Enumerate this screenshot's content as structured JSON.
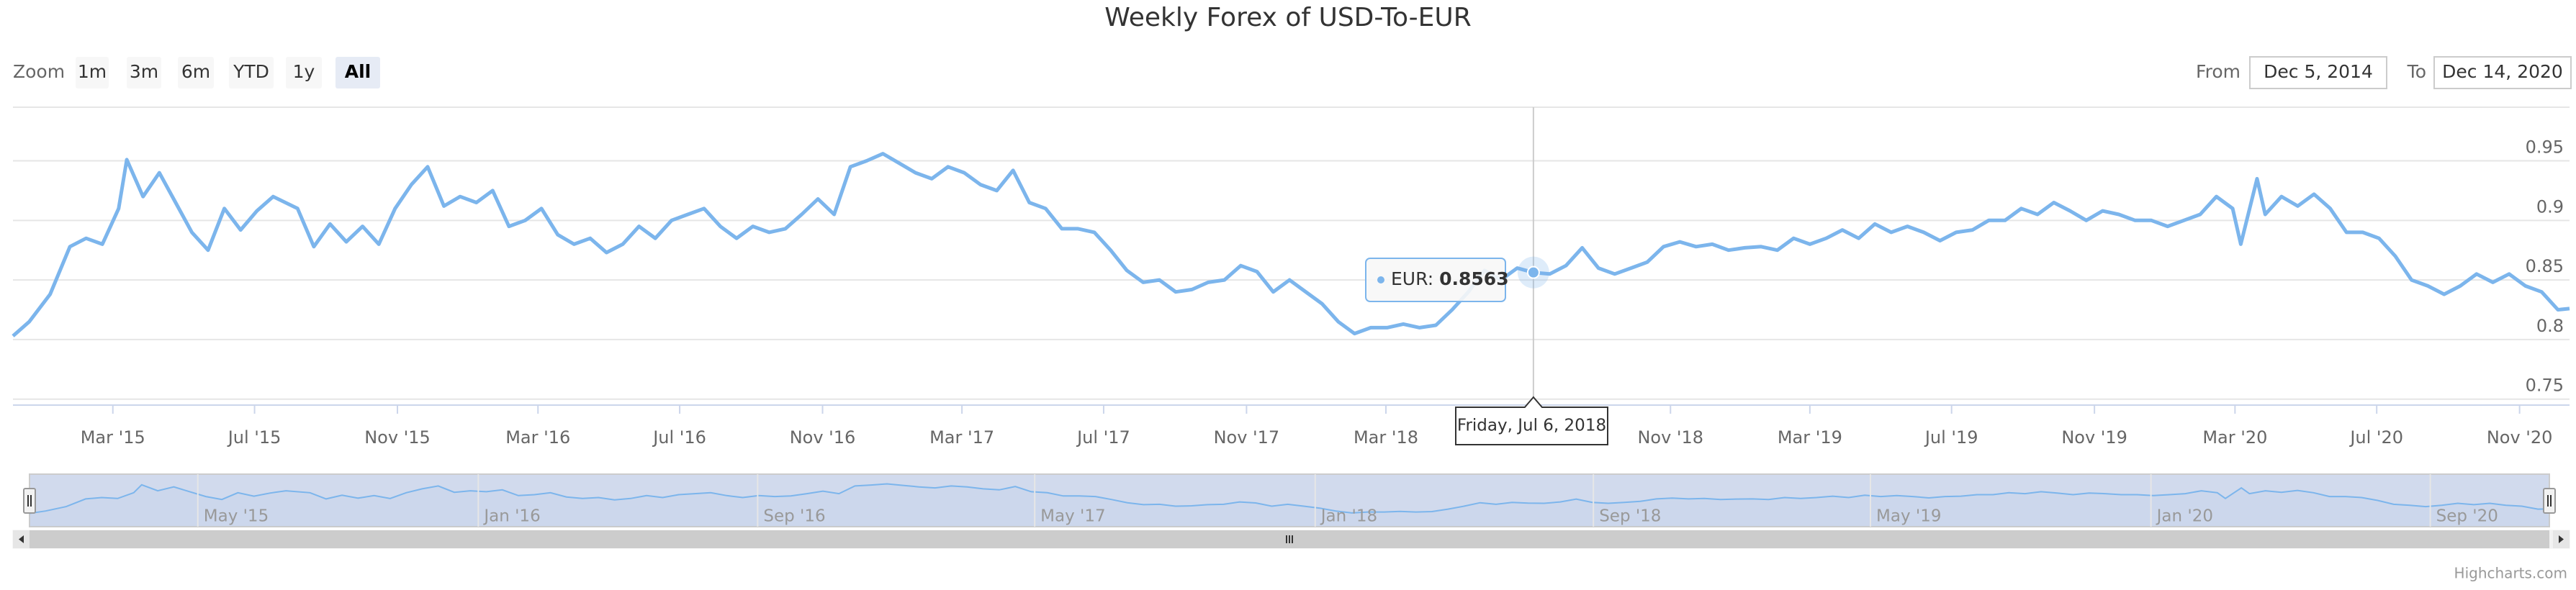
{
  "chart_data": {
    "type": "line",
    "title": "Weekly Forex of USD-To-EUR",
    "range_selector": {
      "label": "Zoom",
      "buttons": [
        "1m",
        "3m",
        "6m",
        "YTD",
        "1y",
        "All"
      ],
      "selected": 5,
      "from_label": "From",
      "from": "Dec 5, 2014",
      "to_label": "To",
      "to": "Dec 14, 2020"
    },
    "color": "#7cb5ec",
    "grid": true,
    "xlim": [
      "2014-12-05",
      "2020-12-14"
    ],
    "ylim": [
      0.745,
      0.995
    ],
    "yticks": [
      0.75,
      0.8,
      0.85,
      0.9,
      0.95
    ],
    "xticks": [
      {
        "value": "2015-03-01",
        "label": "Mar '15"
      },
      {
        "value": "2015-07-01",
        "label": "Jul '15"
      },
      {
        "value": "2015-11-01",
        "label": "Nov '15"
      },
      {
        "value": "2016-03-01",
        "label": "Mar '16"
      },
      {
        "value": "2016-07-01",
        "label": "Jul '16"
      },
      {
        "value": "2016-11-01",
        "label": "Nov '16"
      },
      {
        "value": "2017-03-01",
        "label": "Mar '17"
      },
      {
        "value": "2017-07-01",
        "label": "Jul '17"
      },
      {
        "value": "2017-11-01",
        "label": "Nov '17"
      },
      {
        "value": "2018-03-01",
        "label": "Mar '18"
      },
      {
        "value": "2018-11-01",
        "label": "Nov '18"
      },
      {
        "value": "2019-03-01",
        "label": "Mar '19"
      },
      {
        "value": "2019-07-01",
        "label": "Jul '19"
      },
      {
        "value": "2019-11-01",
        "label": "Nov '19"
      },
      {
        "value": "2020-03-01",
        "label": "Mar '20"
      },
      {
        "value": "2020-07-01",
        "label": "Jul '20"
      },
      {
        "value": "2020-11-01",
        "label": "Nov '20"
      }
    ],
    "navigator_xticks": [
      {
        "value": "2015-05-01",
        "label": "May '15"
      },
      {
        "value": "2016-01-01",
        "label": "Jan '16"
      },
      {
        "value": "2016-09-01",
        "label": "Sep '16"
      },
      {
        "value": "2017-05-01",
        "label": "May '17"
      },
      {
        "value": "2018-01-01",
        "label": "Jan '18"
      },
      {
        "value": "2018-09-01",
        "label": "Sep '18"
      },
      {
        "value": "2019-05-01",
        "label": "May '19"
      },
      {
        "value": "2020-01-01",
        "label": "Jan '20"
      },
      {
        "value": "2020-09-01",
        "label": "Sep '20"
      }
    ],
    "x": [
      "2014-12-05",
      "2014-12-19",
      "2015-01-06",
      "2015-01-23",
      "2015-02-06",
      "2015-02-20",
      "2015-03-06",
      "2015-03-13",
      "2015-03-27",
      "2015-04-10",
      "2015-04-24",
      "2015-05-08",
      "2015-05-22",
      "2015-06-05",
      "2015-06-19",
      "2015-07-03",
      "2015-07-17",
      "2015-08-07",
      "2015-08-21",
      "2015-09-04",
      "2015-09-18",
      "2015-10-02",
      "2015-10-16",
      "2015-10-30",
      "2015-11-13",
      "2015-11-27",
      "2015-12-11",
      "2015-12-25",
      "2016-01-08",
      "2016-01-22",
      "2016-02-05",
      "2016-02-19",
      "2016-03-04",
      "2016-03-18",
      "2016-04-01",
      "2016-04-15",
      "2016-04-29",
      "2016-05-13",
      "2016-05-27",
      "2016-06-10",
      "2016-06-24",
      "2016-07-08",
      "2016-07-22",
      "2016-08-05",
      "2016-08-19",
      "2016-09-02",
      "2016-09-16",
      "2016-09-30",
      "2016-10-14",
      "2016-10-28",
      "2016-11-11",
      "2016-11-25",
      "2016-12-09",
      "2016-12-23",
      "2017-01-06",
      "2017-01-20",
      "2017-02-03",
      "2017-02-17",
      "2017-03-03",
      "2017-03-17",
      "2017-03-31",
      "2017-04-14",
      "2017-04-28",
      "2017-05-12",
      "2017-05-26",
      "2017-06-09",
      "2017-06-23",
      "2017-07-07",
      "2017-07-21",
      "2017-08-04",
      "2017-08-18",
      "2017-09-01",
      "2017-09-15",
      "2017-09-29",
      "2017-10-13",
      "2017-10-27",
      "2017-11-10",
      "2017-11-24",
      "2017-12-08",
      "2017-12-22",
      "2018-01-05",
      "2018-01-19",
      "2018-02-02",
      "2018-02-16",
      "2018-03-02",
      "2018-03-16",
      "2018-03-30",
      "2018-04-13",
      "2018-04-27",
      "2018-05-11",
      "2018-05-25",
      "2018-06-08",
      "2018-06-22",
      "2018-07-06",
      "2018-07-20",
      "2018-08-03",
      "2018-08-17",
      "2018-08-31",
      "2018-09-14",
      "2018-09-28",
      "2018-10-12",
      "2018-10-26",
      "2018-11-09",
      "2018-11-23",
      "2018-12-07",
      "2018-12-21",
      "2019-01-04",
      "2019-01-18",
      "2019-02-01",
      "2019-02-15",
      "2019-03-01",
      "2019-03-15",
      "2019-03-29",
      "2019-04-12",
      "2019-04-26",
      "2019-05-10",
      "2019-05-24",
      "2019-06-07",
      "2019-06-21",
      "2019-07-05",
      "2019-07-19",
      "2019-08-02",
      "2019-08-16",
      "2019-08-30",
      "2019-09-13",
      "2019-09-27",
      "2019-10-11",
      "2019-10-25",
      "2019-11-08",
      "2019-11-22",
      "2019-12-06",
      "2019-12-20",
      "2020-01-03",
      "2020-01-17",
      "2020-01-31",
      "2020-02-14",
      "2020-02-28",
      "2020-03-06",
      "2020-03-20",
      "2020-03-27",
      "2020-04-10",
      "2020-04-24",
      "2020-05-08",
      "2020-05-22",
      "2020-06-05",
      "2020-06-19",
      "2020-07-03",
      "2020-07-17",
      "2020-07-31",
      "2020-08-14",
      "2020-08-28",
      "2020-09-11",
      "2020-09-25",
      "2020-10-09",
      "2020-10-23",
      "2020-11-06",
      "2020-11-20",
      "2020-12-04",
      "2020-12-14"
    ],
    "values": [
      0.803,
      0.815,
      0.838,
      0.878,
      0.885,
      0.88,
      0.91,
      0.951,
      0.92,
      0.94,
      0.915,
      0.89,
      0.875,
      0.91,
      0.892,
      0.908,
      0.92,
      0.91,
      0.878,
      0.897,
      0.882,
      0.895,
      0.88,
      0.91,
      0.93,
      0.945,
      0.912,
      0.92,
      0.915,
      0.925,
      0.895,
      0.9,
      0.91,
      0.888,
      0.88,
      0.885,
      0.873,
      0.88,
      0.895,
      0.885,
      0.9,
      0.905,
      0.91,
      0.895,
      0.885,
      0.895,
      0.89,
      0.893,
      0.905,
      0.918,
      0.905,
      0.945,
      0.95,
      0.956,
      0.948,
      0.94,
      0.935,
      0.945,
      0.94,
      0.93,
      0.925,
      0.942,
      0.915,
      0.91,
      0.893,
      0.893,
      0.89,
      0.875,
      0.858,
      0.848,
      0.85,
      0.84,
      0.842,
      0.848,
      0.85,
      0.862,
      0.857,
      0.84,
      0.85,
      0.84,
      0.83,
      0.815,
      0.805,
      0.81,
      0.81,
      0.813,
      0.81,
      0.812,
      0.825,
      0.84,
      0.858,
      0.85,
      0.86,
      0.8563,
      0.855,
      0.862,
      0.877,
      0.86,
      0.855,
      0.86,
      0.865,
      0.878,
      0.882,
      0.878,
      0.88,
      0.875,
      0.877,
      0.878,
      0.875,
      0.885,
      0.88,
      0.885,
      0.892,
      0.885,
      0.897,
      0.89,
      0.895,
      0.89,
      0.883,
      0.89,
      0.892,
      0.9,
      0.9,
      0.91,
      0.905,
      0.915,
      0.908,
      0.9,
      0.908,
      0.905,
      0.9,
      0.9,
      0.895,
      0.9,
      0.905,
      0.92,
      0.91,
      0.88,
      0.935,
      0.905,
      0.92,
      0.912,
      0.922,
      0.91,
      0.89,
      0.89,
      0.885,
      0.87,
      0.85,
      0.845,
      0.838,
      0.845,
      0.855,
      0.848,
      0.855,
      0.845,
      0.84,
      0.825,
      0.826
    ],
    "tooltip": {
      "label": "EUR:",
      "value": 0.8563,
      "date": "Friday, Jul 6, 2018",
      "index": 93
    },
    "credit": "Highcharts.com"
  }
}
